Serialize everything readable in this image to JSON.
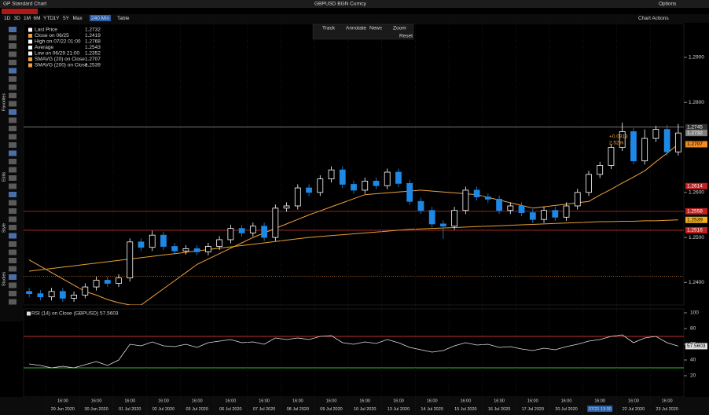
{
  "header": {
    "title": "GP Standard Chart",
    "security": "GBPUSD BGN Curncy",
    "options": "Options"
  },
  "toolbar": {
    "periods": [
      "1D",
      "3D",
      "1M",
      "6M",
      "YTD",
      "1Y",
      "5Y",
      "Max"
    ],
    "frequency": "240 Min",
    "table": "Table",
    "actions": "Chart Actions"
  },
  "chart_tools": [
    "Track",
    "Annotate",
    "News",
    "Zoom"
  ],
  "reset": "Reset",
  "side_labels": [
    "Favorites",
    "Edits",
    "Style",
    "Studies"
  ],
  "chart_data": [
    {
      "type": "candlestick",
      "legend": [
        {
          "label": "Last Price",
          "value": 1.2732,
          "color": "#ffffff"
        },
        {
          "label": "Close on 06/25",
          "value": 1.2419,
          "color": "#f0a040"
        },
        {
          "label": "High on 07/22 01:00",
          "value": 1.2768,
          "color": "#ffffff"
        },
        {
          "label": "Average",
          "value": 1.2543,
          "color": "#ffffff"
        },
        {
          "label": "Low on 06/29 21:00",
          "value": 1.2352,
          "color": "#ffffff"
        },
        {
          "label": "SMAVG (20)  on Close",
          "value": 1.2707,
          "color": "#f0a040"
        },
        {
          "label": "SMAVG (200)  on Close",
          "value": 1.2539,
          "color": "#f0a040"
        }
      ],
      "up_color": "#ffffff",
      "down_color": "#1e88e5",
      "open": [
        1.238,
        1.2375,
        1.2368,
        1.238,
        1.2365,
        1.2372,
        1.239,
        1.2405,
        1.2398,
        1.241,
        1.249,
        1.2478,
        1.2505,
        1.248,
        1.247,
        1.2475,
        1.2468,
        1.248,
        1.2495,
        1.252,
        1.251,
        1.2525,
        1.25,
        1.2565,
        1.257,
        1.261,
        1.26,
        1.263,
        1.265,
        1.2618,
        1.2605,
        1.2625,
        1.2615,
        1.2645,
        1.262,
        1.258,
        1.256,
        1.253,
        1.2525,
        1.256,
        1.2605,
        1.259,
        1.2585,
        1.256,
        1.257,
        1.2555,
        1.254,
        1.256,
        1.2545,
        1.257,
        1.26,
        1.264,
        1.266,
        1.27,
        1.2735,
        1.267,
        1.272,
        1.274,
        1.269
      ],
      "high": [
        1.2388,
        1.2383,
        1.2388,
        1.2388,
        1.238,
        1.2398,
        1.2413,
        1.2413,
        1.2418,
        1.2498,
        1.2498,
        1.2515,
        1.2513,
        1.2488,
        1.2483,
        1.2483,
        1.2488,
        1.2503,
        1.2528,
        1.2528,
        1.2533,
        1.2533,
        1.2573,
        1.2578,
        1.2618,
        1.2618,
        1.2638,
        1.2658,
        1.2658,
        1.2626,
        1.2633,
        1.2633,
        1.2653,
        1.2653,
        1.2628,
        1.2588,
        1.2568,
        1.2538,
        1.2568,
        1.2613,
        1.2613,
        1.2598,
        1.2593,
        1.2578,
        1.2578,
        1.2563,
        1.2568,
        1.2568,
        1.2578,
        1.2608,
        1.2648,
        1.2668,
        1.2708,
        1.2755,
        1.2743,
        1.274,
        1.2748,
        1.275,
        1.2752
      ],
      "low": [
        1.2367,
        1.236,
        1.236,
        1.2357,
        1.2357,
        1.2365,
        1.2382,
        1.239,
        1.239,
        1.2402,
        1.247,
        1.247,
        1.2472,
        1.2462,
        1.2462,
        1.246,
        1.246,
        1.2472,
        1.2487,
        1.2502,
        1.2502,
        1.2492,
        1.2492,
        1.2557,
        1.2562,
        1.2592,
        1.2592,
        1.2622,
        1.261,
        1.2597,
        1.2597,
        1.2607,
        1.2607,
        1.2612,
        1.2572,
        1.2552,
        1.2522,
        1.2497,
        1.2517,
        1.2552,
        1.2582,
        1.2577,
        1.2552,
        1.2552,
        1.2547,
        1.2532,
        1.2532,
        1.2537,
        1.2537,
        1.2562,
        1.2592,
        1.2632,
        1.2652,
        1.2692,
        1.2662,
        1.2662,
        1.2712,
        1.2682,
        1.2682
      ],
      "close": [
        1.2375,
        1.2368,
        1.238,
        1.2365,
        1.2372,
        1.239,
        1.2405,
        1.2398,
        1.241,
        1.249,
        1.2478,
        1.2505,
        1.248,
        1.247,
        1.2475,
        1.2468,
        1.248,
        1.2495,
        1.252,
        1.251,
        1.2525,
        1.25,
        1.2565,
        1.257,
        1.261,
        1.26,
        1.263,
        1.265,
        1.2618,
        1.2605,
        1.2625,
        1.2615,
        1.2645,
        1.262,
        1.258,
        1.256,
        1.253,
        1.2525,
        1.256,
        1.2605,
        1.259,
        1.2585,
        1.256,
        1.257,
        1.2555,
        1.254,
        1.256,
        1.2545,
        1.257,
        1.26,
        1.264,
        1.266,
        1.27,
        1.2735,
        1.267,
        1.272,
        1.274,
        1.269,
        1.2732
      ],
      "series": [
        {
          "name": "SMAVG (20)",
          "color": "#f0a040",
          "values": [
            1.245,
            1.2436,
            1.2422,
            1.2408,
            1.2394,
            1.238,
            1.2372,
            1.2362,
            1.2355,
            1.235,
            1.235,
            1.2368,
            1.2386,
            1.2404,
            1.2422,
            1.244,
            1.2452,
            1.2464,
            1.2476,
            1.2488,
            1.25,
            1.251,
            1.252,
            1.253,
            1.254,
            1.255,
            1.2559,
            1.2568,
            1.2577,
            1.2586,
            1.2595,
            1.2597,
            1.2599,
            1.2601,
            1.2603,
            1.2605,
            1.2603,
            1.2601,
            1.2599,
            1.2597,
            1.2595,
            1.2589,
            1.2583,
            1.2577,
            1.2571,
            1.2565,
            1.2568,
            1.2571,
            1.2574,
            1.2577,
            1.258,
            1.2594,
            1.2607,
            1.2621,
            1.2634,
            1.2648,
            1.2668,
            1.2687,
            1.2707
          ]
        },
        {
          "name": "SMAVG (200)",
          "color": "#e8a030",
          "values": [
            1.2425,
            1.2428,
            1.2431,
            1.2434,
            1.2437,
            1.244,
            1.2443,
            1.2446,
            1.2449,
            1.2452,
            1.2455,
            1.2458,
            1.2461,
            1.2464,
            1.2467,
            1.247,
            1.2473,
            1.2476,
            1.2479,
            1.2482,
            1.2485,
            1.2488,
            1.2491,
            1.2494,
            1.2497,
            1.25,
            1.2502,
            1.2504,
            1.2506,
            1.2508,
            1.251,
            1.2512,
            1.2514,
            1.2516,
            1.2518,
            1.2519,
            1.252,
            1.2521,
            1.2522,
            1.2523,
            1.2524,
            1.2525,
            1.2526,
            1.2527,
            1.2528,
            1.2529,
            1.253,
            1.2531,
            1.2532,
            1.2533,
            1.2534,
            1.2535,
            1.2535,
            1.2536,
            1.2536,
            1.2537,
            1.2537,
            1.2538,
            1.2539
          ]
        }
      ],
      "ylim": [
        1.235,
        1.2975
      ],
      "yticks": [
        {
          "value": 1.24,
          "label": "1.2400"
        },
        {
          "value": 1.25,
          "label": "1.2500"
        },
        {
          "value": 1.26,
          "label": "1.2600"
        },
        {
          "value": 1.28,
          "label": "1.2800"
        },
        {
          "value": 1.29,
          "label": "1.2900"
        }
      ],
      "ref_lines": [
        {
          "value": 1.2745,
          "color": "#9a9a9a",
          "dash": false
        },
        {
          "value": 1.2558,
          "color": "#c03030",
          "dash": false
        },
        {
          "value": 1.2516,
          "color": "#c03030",
          "dash": false
        },
        {
          "value": 1.2414,
          "color": "#d08030",
          "dash": true
        }
      ],
      "price_labels": [
        {
          "value": 1.2745,
          "bg": "#303030",
          "fg": "#ffffff"
        },
        {
          "value": 1.2732,
          "bg": "#808080",
          "fg": "#ffffff"
        },
        {
          "value": 1.2707,
          "bg": "#f08c20",
          "fg": "#000000"
        },
        {
          "value": 1.2614,
          "bg": "#c02020",
          "fg": "#ffffff"
        },
        {
          "value": 1.2558,
          "bg": "#c02020",
          "fg": "#ffffff"
        },
        {
          "value": 1.2539,
          "bg": "#f0b020",
          "fg": "#000000"
        },
        {
          "value": 1.2516,
          "bg": "#c02020",
          "fg": "#ffffff"
        }
      ],
      "change": "+0.0313",
      "change_pct": "2.52%",
      "time_label": "16:00",
      "days": [
        "29 Jun 2020",
        "30 Jun 2020",
        "01 Jul 2020",
        "02 Jul 2020",
        "03 Jul 2020",
        "06 Jul 2020",
        "07 Jul 2020",
        "08 Jul 2020",
        "09 Jul 2020",
        "10 Jul 2020",
        "13 Jul 2020",
        "14 Jul 2020",
        "15 Jul 2020",
        "16 Jul 2020",
        "17 Jul 2020",
        "20 Jul 2020",
        {
          "label": "07/21 13:30",
          "highlight": true
        },
        "22 Jul 2020",
        "23 Jul 2020"
      ]
    },
    {
      "type": "line",
      "title": "RSI (14)  on Close (GBPUSD) 57.5603",
      "color": "#e0e0e0",
      "values": [
        35,
        33,
        30,
        32,
        30,
        34,
        38,
        33,
        40,
        60,
        58,
        63,
        58,
        57,
        60,
        56,
        62,
        64,
        66,
        62,
        63,
        60,
        68,
        66,
        68,
        66,
        70,
        71,
        62,
        60,
        63,
        61,
        66,
        62,
        56,
        53,
        50,
        52,
        58,
        62,
        59,
        60,
        56,
        57,
        54,
        52,
        55,
        53,
        57,
        60,
        64,
        66,
        70,
        72,
        62,
        68,
        70,
        62,
        57.5603
      ],
      "ylim": [
        -7,
        105
      ],
      "yticks": [
        20,
        40,
        60,
        80,
        100
      ],
      "ref_lines": [
        {
          "value": 70,
          "color": "#c03030"
        },
        {
          "value": 30,
          "color": "#30c030"
        }
      ],
      "last_label": 57.5603
    }
  ]
}
